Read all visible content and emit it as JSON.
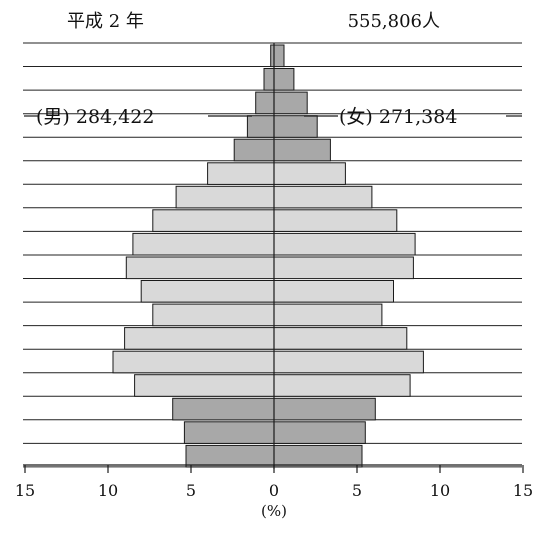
{
  "header": {
    "era_label": "平成 2 年",
    "total_population": "555,806人"
  },
  "labels": {
    "male": "(男) 284,422",
    "female": "(女) 271,384"
  },
  "chart_data": {
    "type": "bar",
    "orientation": "horizontal-pyramid",
    "title": "平成 2 年",
    "total": "555,806人",
    "xlabel": "(%)",
    "xlim": [
      -15,
      15
    ],
    "xticks": [
      15,
      10,
      5,
      0,
      5,
      10,
      15
    ],
    "grid": true,
    "age_groups_count": 18,
    "series": [
      {
        "name": "(男) 284,422",
        "side": "left",
        "values_top_to_bottom": [
          0.2,
          0.6,
          1.1,
          1.6,
          2.4,
          4.0,
          5.9,
          7.3,
          8.5,
          8.9,
          8.0,
          7.3,
          9.0,
          9.7,
          8.4,
          6.1,
          5.4,
          5.3
        ]
      },
      {
        "name": "(女) 271,384",
        "side": "right",
        "values_top_to_bottom": [
          0.6,
          1.2,
          2.0,
          2.6,
          3.4,
          4.3,
          5.9,
          7.4,
          8.5,
          8.4,
          7.2,
          6.5,
          8.0,
          9.0,
          8.2,
          6.1,
          5.5,
          5.3
        ]
      }
    ],
    "colors": {
      "dark": "#a8a8a8",
      "light": "#d9d9d9",
      "stroke": "#1a1a1a",
      "grid": "#222222"
    }
  }
}
